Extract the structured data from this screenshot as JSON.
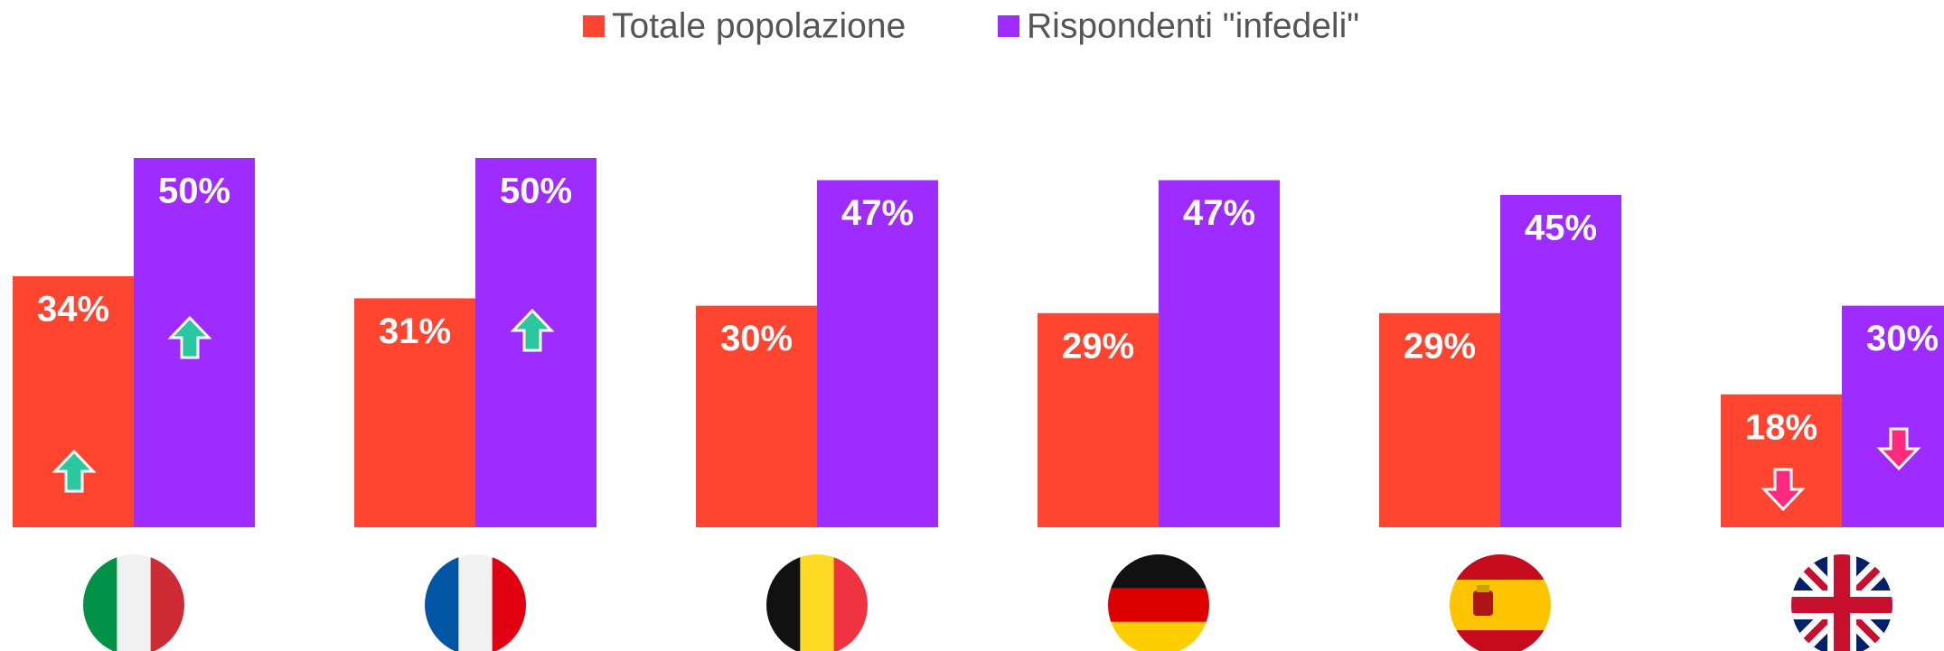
{
  "chart_data": {
    "type": "bar",
    "categories": [
      null,
      null,
      null,
      null,
      null,
      null
    ],
    "series": [
      {
        "name": "Totale popolazione",
        "color": "#ff4530",
        "values": [
          34,
          31,
          30,
          29,
          29,
          18
        ]
      },
      {
        "name": "Rispondenti \"infedeli\"",
        "color": "#9e2bff",
        "values": [
          50,
          50,
          47,
          47,
          45,
          30
        ]
      }
    ],
    "value_labels": [
      [
        "34%",
        "31%",
        "30%",
        "29%",
        "29%",
        "18%"
      ],
      [
        "50%",
        "50%",
        "47%",
        "47%",
        "45%",
        "30%"
      ]
    ]
  }
}
